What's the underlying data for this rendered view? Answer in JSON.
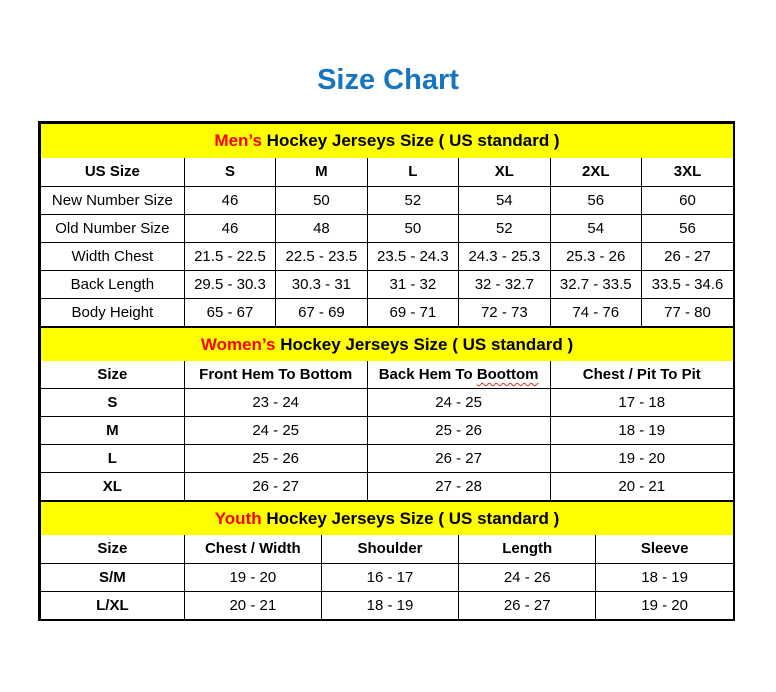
{
  "page": {
    "title": "Size Chart"
  },
  "colors": {
    "title_blue": "#1674C1",
    "banner_yellow": "#FFFF00",
    "highlight_red": "#FF0000",
    "border_black": "#000000",
    "squiggle_red": "#D93025"
  },
  "sections": [
    {
      "id": "mens",
      "banner": {
        "highlight": "Men’s",
        "rest": " Hockey Jerseys Size ( US standard )"
      },
      "columns": [
        "US Size",
        "S",
        "M",
        "L",
        "XL",
        "2XL",
        "3XL"
      ],
      "rows": [
        {
          "label": "New Number Size",
          "values": [
            "46",
            "50",
            "52",
            "54",
            "56",
            "60"
          ]
        },
        {
          "label": "Old Number Size",
          "values": [
            "46",
            "48",
            "50",
            "52",
            "54",
            "56"
          ]
        },
        {
          "label": "Width Chest",
          "values": [
            "21.5 - 22.5",
            "22.5 - 23.5",
            "23.5 - 24.3",
            "24.3 - 25.3",
            "25.3 - 26",
            "26 - 27"
          ]
        },
        {
          "label": "Back Length",
          "values": [
            "29.5 - 30.3",
            "30.3 - 31",
            "31 - 32",
            "32 - 32.7",
            "32.7 - 33.5",
            "33.5 - 34.6"
          ]
        },
        {
          "label": "Body Height",
          "values": [
            "65 - 67",
            "67 - 69",
            "69 - 71",
            "72 - 73",
            "74 - 76",
            "77 - 80"
          ]
        }
      ]
    },
    {
      "id": "womens",
      "banner": {
        "highlight": "Women’s",
        "rest": " Hockey Jerseys Size ( US standard )"
      },
      "columns": [
        "Size",
        "Front Hem To Bottom",
        "Back Hem To Boottom",
        "Chest / Pit To Pit"
      ],
      "spellcheck_word": "Boottom",
      "rows": [
        {
          "label": "S",
          "values": [
            "23 - 24",
            "24 - 25",
            "17 - 18"
          ]
        },
        {
          "label": "M",
          "values": [
            "24 - 25",
            "25 - 26",
            "18 - 19"
          ]
        },
        {
          "label": "L",
          "values": [
            "25 - 26",
            "26 - 27",
            "19 - 20"
          ]
        },
        {
          "label": "XL",
          "values": [
            "26 - 27",
            "27 - 28",
            "20 - 21"
          ]
        }
      ]
    },
    {
      "id": "youth",
      "banner": {
        "highlight": "Youth",
        "rest": " Hockey Jerseys Size ( US standard )"
      },
      "columns": [
        "Size",
        "Chest / Width",
        "Shoulder",
        "Length",
        "Sleeve"
      ],
      "rows": [
        {
          "label": "S/M",
          "values": [
            "19 - 20",
            "16 - 17",
            "24 - 26",
            "18 - 19"
          ]
        },
        {
          "label": "L/XL",
          "values": [
            "20 - 21",
            "18 - 19",
            "26 - 27",
            "19 - 20"
          ]
        }
      ]
    }
  ]
}
